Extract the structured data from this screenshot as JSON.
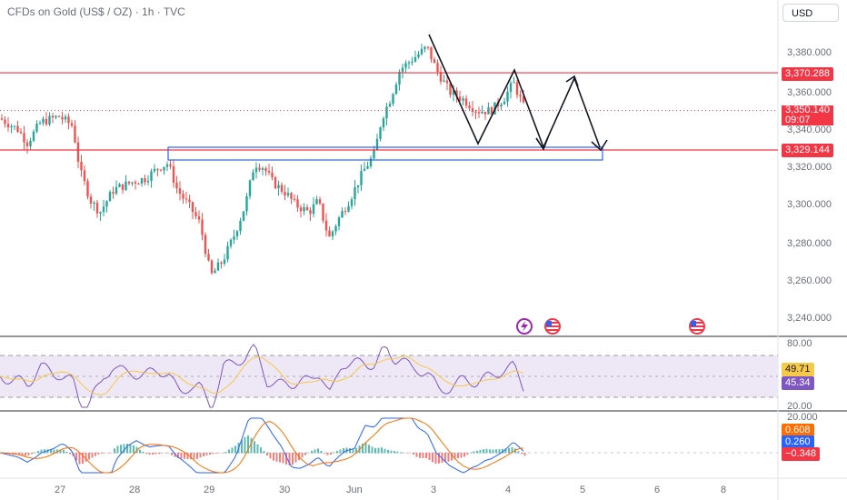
{
  "header": {
    "title": "CFDs on Gold (US$ / OZ) · 1h · TVC",
    "currency": "USD"
  },
  "price_axis": {
    "ticks": [
      "3,380.000",
      "3,360.000",
      "3,340.000",
      "3,320.000",
      "3,300.000",
      "3,280.000",
      "3,260.000",
      "3,240.000"
    ]
  },
  "price_tags": {
    "top_line": "3,370.288",
    "last": "3,350.140",
    "countdown": "09:07",
    "bottom_line": "3,329.144"
  },
  "rsi": {
    "ticks": [
      "80.00",
      "20.00"
    ],
    "value_yellow": "49.71",
    "value_purple": "45.34"
  },
  "macd": {
    "top_tick": "20.000",
    "orange": "0.608",
    "blue": "0.260",
    "hist": "−0.348"
  },
  "time_axis": {
    "labels": [
      "27",
      "28",
      "29",
      "30",
      "Jun",
      "3",
      "4",
      "5",
      "6",
      "8"
    ]
  },
  "colors": {
    "up": "#26a69a",
    "down": "#ef5350",
    "level_line": "#f23645",
    "rsi_line": "#7e57c2",
    "rsi_ma": "#f7c948",
    "macd_line": "#2962ff",
    "signal_line": "#ff6d00",
    "zone_border": "#2962ff"
  },
  "icons": {
    "event_lightning": "lightning-icon",
    "event_flag": "us-flag-icon"
  }
}
